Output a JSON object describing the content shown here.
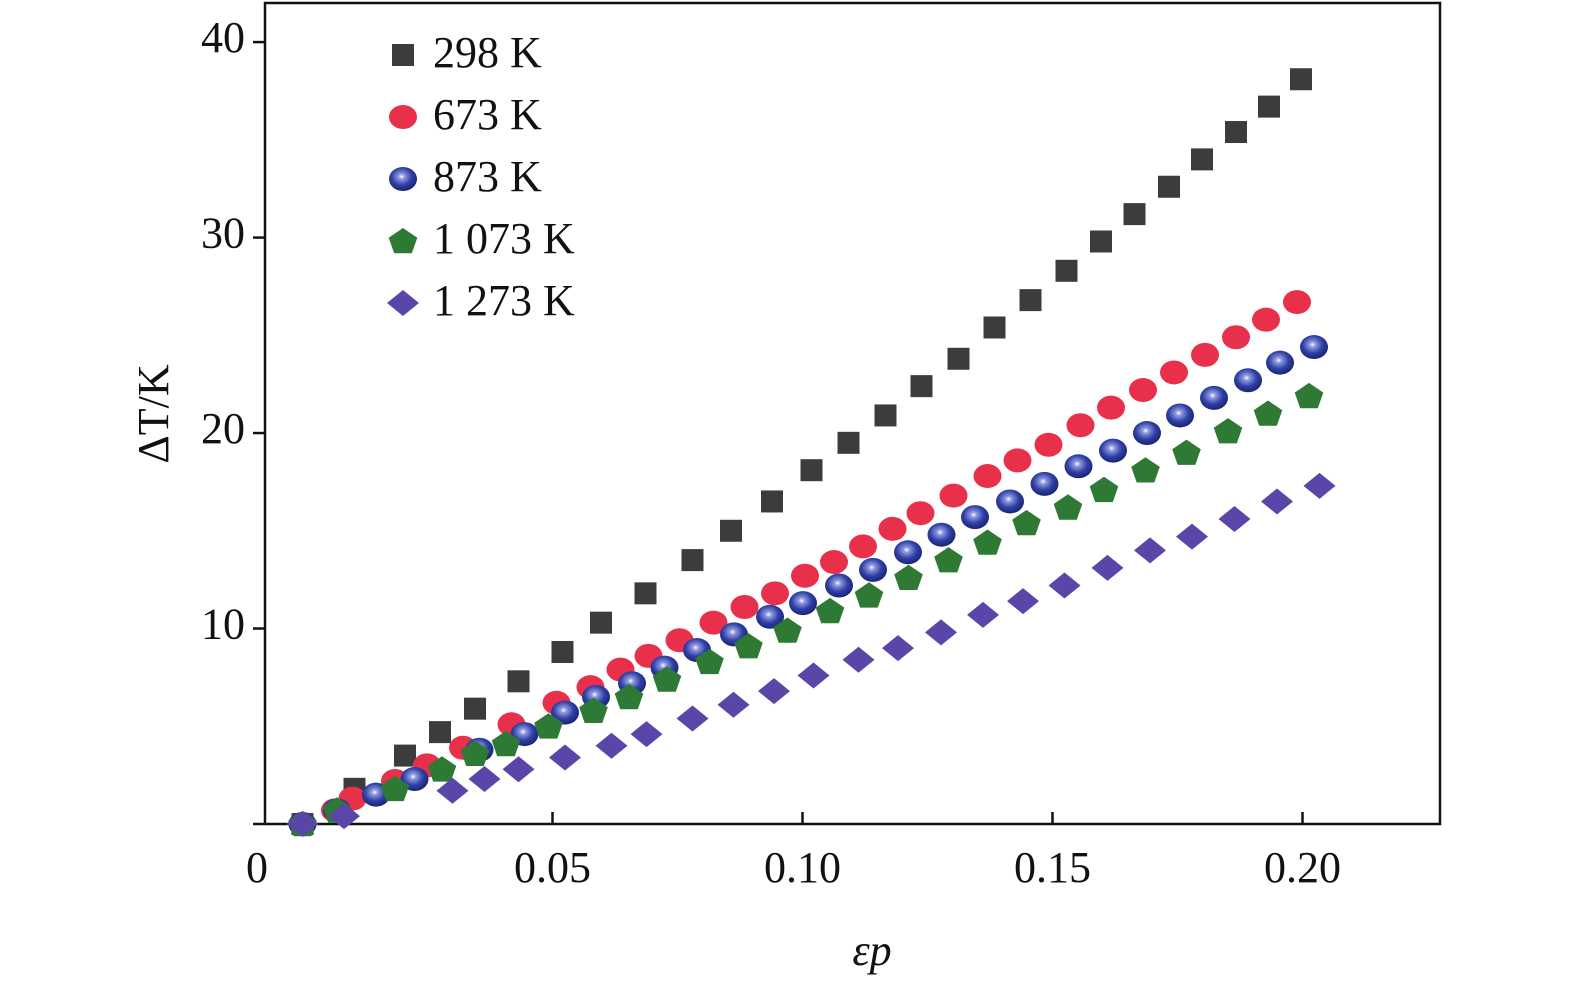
{
  "chart_data": {
    "type": "scatter",
    "xlabel": "εp",
    "ylabel": "ΔT/K",
    "xlim": [
      -0.0075,
      0.2275
    ],
    "ylim": [
      0,
      42
    ],
    "xticks": [
      {
        "value": 0.05,
        "label": "0.05"
      },
      {
        "value": 0.1,
        "label": "0.10"
      },
      {
        "value": 0.15,
        "label": "0.15"
      },
      {
        "value": 0.2,
        "label": "0.20"
      }
    ],
    "yticks": [
      0,
      10,
      20,
      30,
      40
    ],
    "legend": "upper left",
    "series": [
      {
        "name": "298 K",
        "color": "#3c3c3e",
        "marker": "square",
        "x": [
          0,
          0.0104,
          0.0205,
          0.0275,
          0.0345,
          0.0432,
          0.052,
          0.0597,
          0.0686,
          0.078,
          0.0857,
          0.0939,
          0.1018,
          0.1092,
          0.1166,
          0.1238,
          0.1312,
          0.1384,
          0.1456,
          0.1528,
          0.1597,
          0.1664,
          0.1733,
          0.1799,
          0.1867,
          0.1933,
          0.1997
        ],
        "values": [
          0,
          1.8,
          3.5,
          4.7,
          5.9,
          7.3,
          8.8,
          10.3,
          11.8,
          13.5,
          15.0,
          16.5,
          18.1,
          19.5,
          20.9,
          22.4,
          23.8,
          25.4,
          26.8,
          28.3,
          29.8,
          31.2,
          32.6,
          34.0,
          35.4,
          36.7,
          38.1
        ]
      },
      {
        "name": "673 K",
        "color": "#e8304a",
        "marker": "circle",
        "x": [
          0,
          0.0065,
          0.01,
          0.0185,
          0.0249,
          0.0321,
          0.0418,
          0.0508,
          0.0576,
          0.0636,
          0.0692,
          0.0754,
          0.0822,
          0.0884,
          0.0945,
          0.1005,
          0.1063,
          0.1121,
          0.118,
          0.1236,
          0.1302,
          0.137,
          0.143,
          0.1492,
          0.1556,
          0.1617,
          0.1681,
          0.1743,
          0.1805,
          0.1867,
          0.1927,
          0.1989
        ],
        "values": [
          0,
          0.7,
          1.3,
          2.2,
          3.0,
          3.9,
          5.1,
          6.2,
          7.0,
          7.9,
          8.6,
          9.4,
          10.3,
          11.1,
          11.8,
          12.7,
          13.4,
          14.2,
          15.1,
          15.9,
          16.8,
          17.8,
          18.6,
          19.4,
          20.4,
          21.3,
          22.2,
          23.1,
          24.0,
          24.9,
          25.8,
          26.7
        ]
      },
      {
        "name": "873 K",
        "color": "#2f3fa6",
        "marker": "sphere",
        "x": [
          0,
          0.0069,
          0.0147,
          0.0224,
          0.0354,
          0.0444,
          0.0525,
          0.0587,
          0.0659,
          0.0724,
          0.0789,
          0.0863,
          0.0935,
          0.1001,
          0.1073,
          0.1141,
          0.1211,
          0.1278,
          0.1345,
          0.1415,
          0.1484,
          0.1552,
          0.1621,
          0.1689,
          0.1755,
          0.1823,
          0.1891,
          0.1955,
          0.2023
        ],
        "values": [
          0,
          0.7,
          1.5,
          2.3,
          3.8,
          4.6,
          5.7,
          6.5,
          7.2,
          8.0,
          8.9,
          9.7,
          10.6,
          11.3,
          12.2,
          13.0,
          13.9,
          14.8,
          15.7,
          16.5,
          17.4,
          18.3,
          19.1,
          20.0,
          20.9,
          21.8,
          22.7,
          23.6,
          24.4
        ]
      },
      {
        "name": "1 073 K",
        "color": "#2e7a34",
        "marker": "pentagon",
        "x": [
          0,
          0.0069,
          0.0185,
          0.0279,
          0.0345,
          0.0407,
          0.0492,
          0.0582,
          0.0653,
          0.0729,
          0.0814,
          0.0892,
          0.097,
          0.1055,
          0.1133,
          0.1212,
          0.1292,
          0.137,
          0.1448,
          0.1531,
          0.1603,
          0.1686,
          0.1768,
          0.1851,
          0.1931,
          0.2013
        ],
        "values": [
          0,
          0.7,
          1.8,
          2.8,
          3.6,
          4.1,
          5.0,
          5.8,
          6.5,
          7.4,
          8.3,
          9.1,
          9.9,
          10.9,
          11.7,
          12.6,
          13.5,
          14.4,
          15.4,
          16.2,
          17.1,
          18.1,
          19.0,
          20.1,
          21.0,
          21.9
        ]
      },
      {
        "name": "1 273 K",
        "color": "#5a45a8",
        "marker": "diamond",
        "x": [
          0,
          0.0083,
          0.03,
          0.0364,
          0.0432,
          0.0525,
          0.0618,
          0.0688,
          0.078,
          0.0862,
          0.0943,
          0.1022,
          0.1112,
          0.1191,
          0.1277,
          0.1361,
          0.1441,
          0.1524,
          0.161,
          0.1695,
          0.1779,
          0.1864,
          0.1949,
          0.2034
        ],
        "values": [
          0,
          0.4,
          1.7,
          2.3,
          2.8,
          3.4,
          4.0,
          4.6,
          5.4,
          6.1,
          6.8,
          7.6,
          8.4,
          9.0,
          9.8,
          10.7,
          11.4,
          12.2,
          13.1,
          14.0,
          14.7,
          15.6,
          16.5,
          17.3
        ]
      }
    ]
  }
}
